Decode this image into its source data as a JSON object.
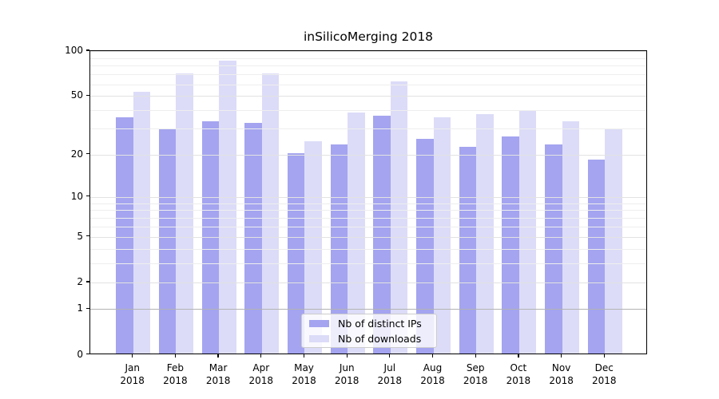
{
  "chart_data": {
    "type": "bar",
    "title": "inSilicoMerging 2018",
    "categories": [
      "Jan",
      "Feb",
      "Mar",
      "Apr",
      "May",
      "Jun",
      "Jul",
      "Aug",
      "Sep",
      "Oct",
      "Nov",
      "Dec"
    ],
    "x_year": "2018",
    "series": [
      {
        "name": "Nb of distinct IPs",
        "color": "#a4a4f0",
        "values": [
          35,
          29,
          33,
          32,
          20,
          23,
          36,
          25,
          22,
          26,
          23,
          18
        ]
      },
      {
        "name": "Nb of downloads",
        "color": "#dcdcf8",
        "values": [
          52,
          69,
          84,
          69,
          24,
          38,
          61,
          35,
          37,
          39,
          33,
          29
        ]
      }
    ],
    "y_scale": "log1p",
    "ylim": [
      0,
      100
    ],
    "y_ticks": [
      0,
      1,
      2,
      5,
      10,
      20,
      50,
      100
    ],
    "y_minor_gridlines": [
      3,
      4,
      6,
      7,
      8,
      9,
      30,
      40,
      60,
      70,
      80,
      90
    ],
    "grid": true,
    "grid_over_bars": true,
    "legend_position": "lower center",
    "colors": {
      "grid_major": "#e2e2e2",
      "grid_minor": "#eeeeee",
      "grid_baseline_1": "#b3b3b3",
      "axis": "#000000",
      "legend_border": "#cccccc"
    }
  }
}
